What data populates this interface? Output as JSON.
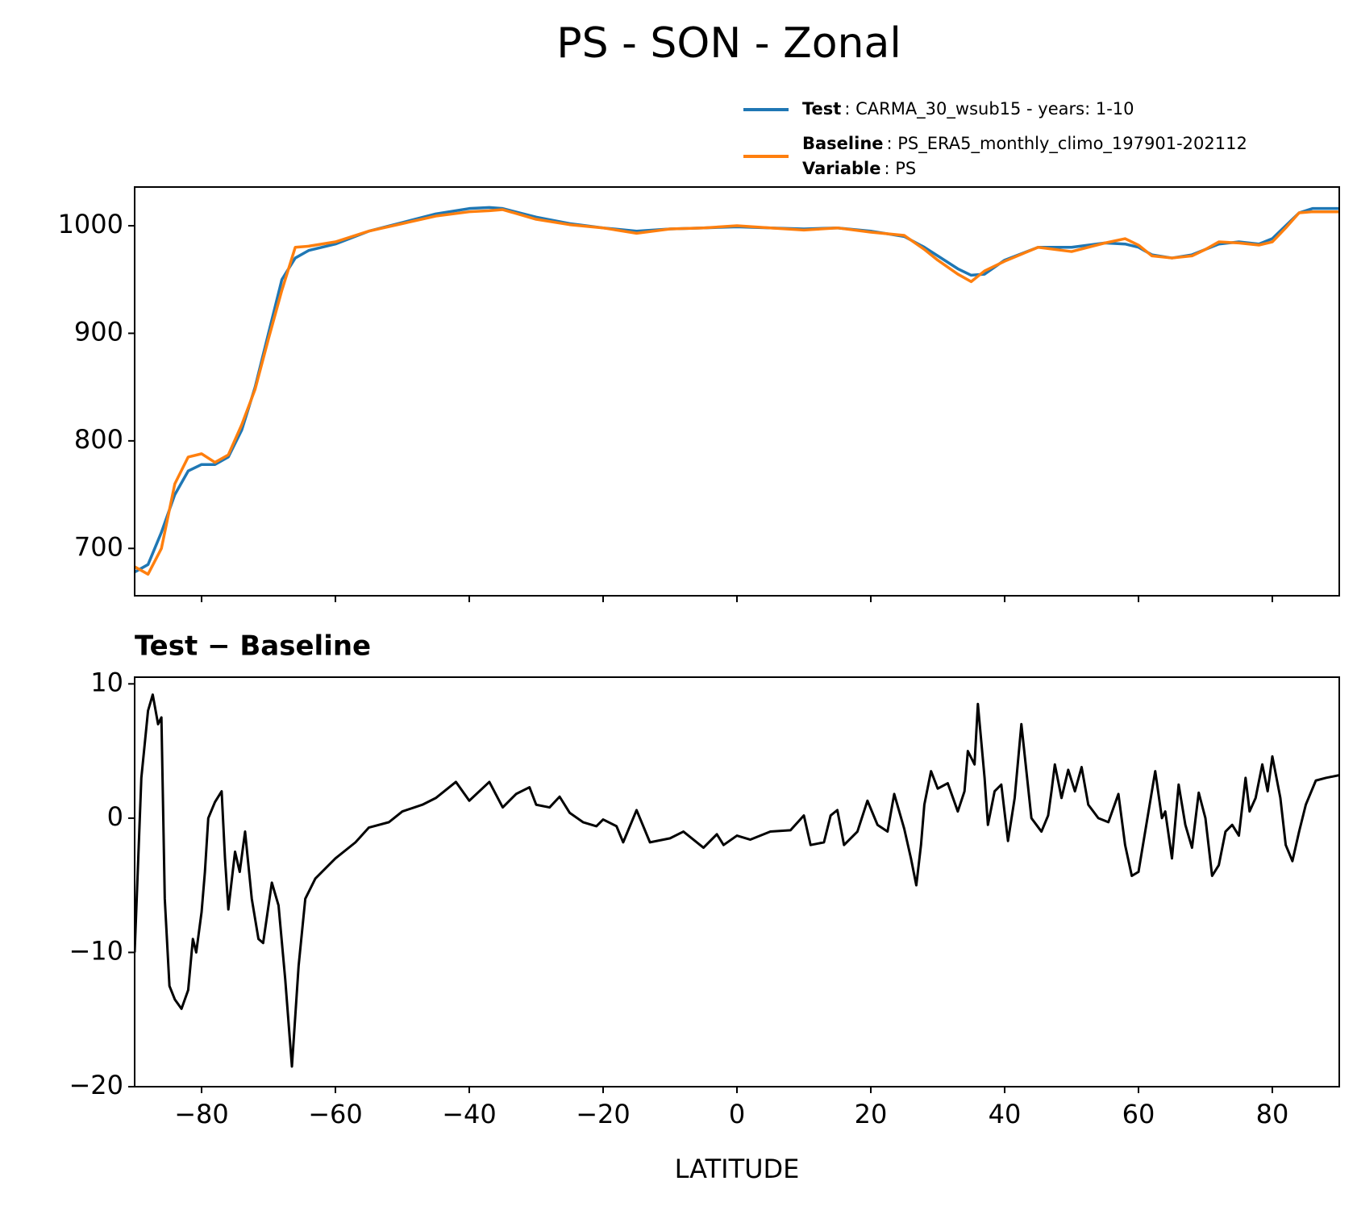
{
  "title": "PS - SON - Zonal",
  "chart_data": [
    {
      "type": "line",
      "x": [
        -90,
        -88,
        -86,
        -84,
        -82,
        -80,
        -78,
        -76,
        -74,
        -72,
        -70,
        -68,
        -66,
        -64,
        -60,
        -55,
        -50,
        -45,
        -40,
        -37,
        -35,
        -30,
        -25,
        -20,
        -15,
        -10,
        -5,
        0,
        5,
        10,
        15,
        20,
        25,
        28,
        30,
        33,
        35,
        37,
        40,
        45,
        50,
        55,
        58,
        60,
        62,
        65,
        68,
        70,
        72,
        75,
        78,
        80,
        82,
        84,
        86,
        90
      ],
      "series": [
        {
          "name": "Test",
          "legend_text": ": CARMA_30_wsub15 - years: 1-10",
          "color": "#1f77b4",
          "values": [
            678,
            685,
            715,
            750,
            772,
            778,
            778,
            785,
            810,
            850,
            900,
            950,
            970,
            977,
            983,
            995,
            1003,
            1011,
            1016,
            1017,
            1016,
            1008,
            1002,
            998,
            995,
            997,
            998,
            999,
            998,
            997,
            998,
            995,
            990,
            980,
            972,
            960,
            954,
            955,
            968,
            980,
            980,
            984,
            983,
            980,
            973,
            970,
            973,
            978,
            983,
            985,
            983,
            988,
            1000,
            1012,
            1016,
            1016
          ]
        },
        {
          "name": "Baseline",
          "legend_text": ": PS_ERA5_monthly_climo_197901-202112",
          "color": "#ff7f0e",
          "values": [
            683,
            676,
            700,
            760,
            785,
            788,
            780,
            787,
            815,
            848,
            895,
            940,
            980,
            981,
            985,
            995,
            1002,
            1009,
            1013,
            1014,
            1015,
            1006,
            1001,
            998,
            993,
            997,
            998,
            1000,
            998,
            996,
            998,
            994,
            991,
            978,
            968,
            955,
            948,
            958,
            967,
            980,
            976,
            984,
            988,
            982,
            972,
            970,
            972,
            978,
            985,
            984,
            982,
            985,
            998,
            1012,
            1013,
            1013
          ]
        }
      ],
      "legend_extra": {
        "name": "Variable",
        "text": ": PS"
      },
      "xlim": [
        -90,
        90
      ],
      "ylim": [
        656,
        1036
      ],
      "xticks": [
        -80,
        -60,
        -40,
        -20,
        0,
        20,
        40,
        60,
        80
      ],
      "yticks": [
        700,
        800,
        900,
        1000
      ]
    },
    {
      "type": "line",
      "title": "Test − Baseline",
      "xlabel": "LATITUDE",
      "x": [
        -90,
        -89,
        -88,
        -87.3,
        -86.5,
        -86,
        -85.5,
        -84.8,
        -84,
        -83,
        -82,
        -81.3,
        -80.8,
        -80,
        -79.5,
        -79,
        -78,
        -77,
        -76.5,
        -76,
        -75,
        -74.3,
        -73.5,
        -72.5,
        -71.5,
        -70.8,
        -69.5,
        -68.5,
        -67.5,
        -66.5,
        -65.5,
        -64.5,
        -63,
        -60,
        -57,
        -55,
        -52,
        -50,
        -47,
        -45,
        -42,
        -40,
        -37,
        -35,
        -33,
        -31,
        -30,
        -28,
        -26.5,
        -25,
        -23,
        -21,
        -20,
        -18,
        -17,
        -15,
        -13,
        -10,
        -8,
        -5,
        -3,
        -2,
        0,
        2,
        5,
        8,
        10,
        11,
        13,
        14,
        15,
        16,
        18,
        19.5,
        21,
        22.5,
        23.5,
        25,
        26,
        26.8,
        27.5,
        28,
        29,
        30,
        31.5,
        33,
        34,
        34.5,
        35.5,
        36,
        37,
        37.5,
        38.5,
        39.5,
        40.5,
        41.5,
        42.5,
        44,
        45.5,
        46.5,
        47,
        47.5,
        48.5,
        49.5,
        50.5,
        51.5,
        52.5,
        54,
        55.5,
        57,
        58,
        59,
        60,
        61.5,
        62.5,
        63.5,
        64,
        65,
        66,
        67,
        68,
        69,
        70,
        71,
        72,
        73,
        74,
        75,
        76,
        76.6,
        77.5,
        78.5,
        79.3,
        80,
        81.2,
        82,
        83,
        84,
        85,
        86.5,
        88,
        90
      ],
      "series": [
        {
          "name": "Test − Baseline",
          "color": "#000000",
          "values": [
            -10,
            3,
            8,
            9.2,
            7,
            7.5,
            -6,
            -12.5,
            -13.5,
            -14.2,
            -12.8,
            -9,
            -10,
            -7,
            -4,
            0,
            1.2,
            2,
            -3,
            -6.8,
            -2.5,
            -4,
            -1,
            -6,
            -9,
            -9.3,
            -4.8,
            -6.5,
            -12,
            -18.5,
            -11,
            -6,
            -4.5,
            -3,
            -1.8,
            -0.7,
            -0.3,
            0.5,
            1,
            1.5,
            2.7,
            1.3,
            2.7,
            0.8,
            1.8,
            2.3,
            1,
            0.8,
            1.6,
            0.4,
            -0.3,
            -0.6,
            -0.1,
            -0.6,
            -1.8,
            0.6,
            -1.8,
            -1.5,
            -1,
            -2.2,
            -1.2,
            -2,
            -1.3,
            -1.6,
            -1,
            -0.9,
            0.2,
            -2,
            -1.8,
            0.2,
            0.6,
            -2,
            -1,
            1.3,
            -0.5,
            -1,
            1.8,
            -0.8,
            -3,
            -5,
            -2,
            1,
            3.5,
            2.2,
            2.6,
            0.5,
            2,
            5,
            4,
            8.5,
            3,
            -0.5,
            2,
            2.5,
            -1.7,
            1.5,
            7,
            0,
            -1,
            0.2,
            2,
            4,
            1.5,
            3.6,
            2,
            3.8,
            1,
            0,
            -0.3,
            1.8,
            -2,
            -4.3,
            -4,
            0.5,
            3.5,
            0,
            0.5,
            -3,
            2.5,
            -0.5,
            -2.2,
            1.9,
            0,
            -4.3,
            -3.5,
            -1,
            -0.5,
            -1.3,
            3,
            0.5,
            1.5,
            4,
            2,
            4.6,
            1.5,
            -2,
            -3.2,
            -1,
            1,
            2.8,
            3,
            3.2
          ]
        }
      ],
      "xlim": [
        -90,
        90
      ],
      "ylim": [
        -20,
        10.5
      ],
      "xticks": [
        {
          "value": -80,
          "label": "−80"
        },
        {
          "value": -60,
          "label": "−60"
        },
        {
          "value": -40,
          "label": "−40"
        },
        {
          "value": -20,
          "label": "−20"
        },
        0,
        20,
        40,
        60,
        80
      ],
      "yticks": [
        {
          "value": -20,
          "label": "−20"
        },
        {
          "value": -10,
          "label": "−10"
        },
        0,
        10
      ]
    }
  ]
}
